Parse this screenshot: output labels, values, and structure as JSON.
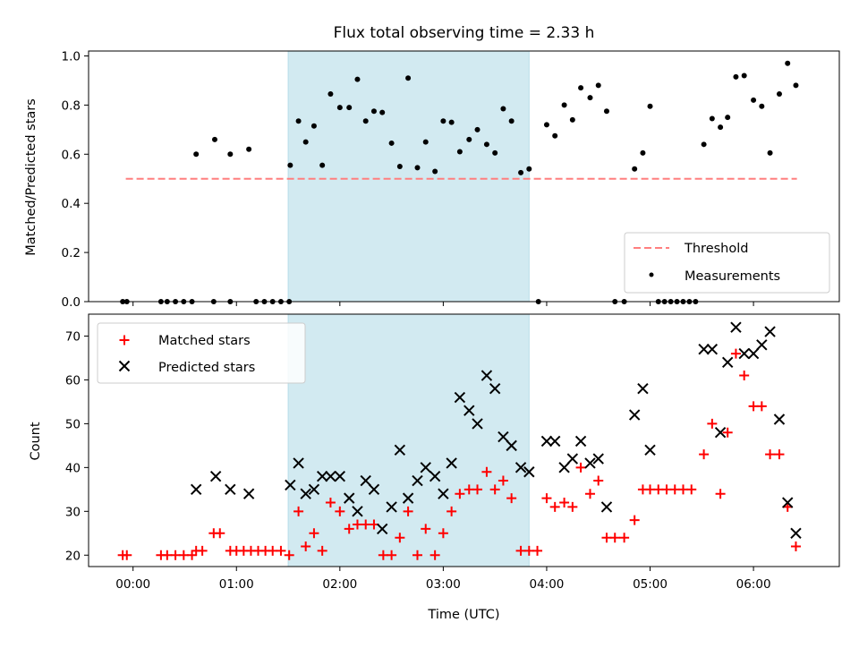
{
  "chart_data": {
    "title": "Flux total observing time = 2.33 h",
    "x_axis": {
      "label": "Time (UTC)",
      "unit": "hours",
      "range": [
        -0.43,
        6.83
      ],
      "ticks": [
        0,
        1,
        2,
        3,
        4,
        5,
        6
      ],
      "tick_labels": [
        "00:00",
        "01:00",
        "02:00",
        "03:00",
        "04:00",
        "05:00",
        "06:00"
      ]
    },
    "highlight_span": {
      "x_start": 1.5,
      "x_end": 3.83,
      "color": "#add8e6"
    },
    "top_panel": {
      "type": "scatter",
      "ylabel": "Matched/Predicted stars",
      "ylim": [
        0,
        1.02
      ],
      "yticks": [
        0.0,
        0.2,
        0.4,
        0.6,
        0.8,
        1.0
      ],
      "ytick_labels": [
        "0.0",
        "0.2",
        "0.4",
        "0.6",
        "0.8",
        "1.0"
      ],
      "legend_position": "lower right",
      "threshold": {
        "name": "Threshold",
        "value": 0.5,
        "x_start": -0.07,
        "x_end": 6.42,
        "color": "#ff7f7f",
        "style": "dashed"
      },
      "measurements": {
        "name": "Measurements",
        "color": "#000000",
        "points": [
          [
            -0.1,
            0
          ],
          [
            -0.06,
            0
          ],
          [
            0.27,
            0
          ],
          [
            0.33,
            0
          ],
          [
            0.41,
            0
          ],
          [
            0.49,
            0
          ],
          [
            0.57,
            0
          ],
          [
            0.78,
            0
          ],
          [
            0.94,
            0
          ],
          [
            1.19,
            0
          ],
          [
            1.27,
            0
          ],
          [
            1.35,
            0
          ],
          [
            1.43,
            0
          ],
          [
            1.51,
            0
          ],
          [
            0.61,
            0.6
          ],
          [
            0.79,
            0.66
          ],
          [
            0.94,
            0.6
          ],
          [
            1.12,
            0.62
          ],
          [
            1.52,
            0.555
          ],
          [
            1.6,
            0.735
          ],
          [
            1.67,
            0.65
          ],
          [
            1.75,
            0.715
          ],
          [
            1.83,
            0.555
          ],
          [
            1.91,
            0.845
          ],
          [
            2.0,
            0.79
          ],
          [
            2.09,
            0.79
          ],
          [
            2.17,
            0.905
          ],
          [
            2.25,
            0.735
          ],
          [
            2.33,
            0.775
          ],
          [
            2.41,
            0.77
          ],
          [
            2.5,
            0.645
          ],
          [
            2.58,
            0.55
          ],
          [
            2.66,
            0.91
          ],
          [
            2.75,
            0.545
          ],
          [
            2.83,
            0.65
          ],
          [
            2.92,
            0.53
          ],
          [
            3.0,
            0.735
          ],
          [
            3.08,
            0.73
          ],
          [
            3.16,
            0.61
          ],
          [
            3.25,
            0.66
          ],
          [
            3.33,
            0.7
          ],
          [
            3.42,
            0.64
          ],
          [
            3.5,
            0.605
          ],
          [
            3.58,
            0.785
          ],
          [
            3.66,
            0.735
          ],
          [
            3.75,
            0.525
          ],
          [
            3.83,
            0.54
          ],
          [
            3.92,
            0
          ],
          [
            4.0,
            0.72
          ],
          [
            4.08,
            0.675
          ],
          [
            4.17,
            0.8
          ],
          [
            4.25,
            0.74
          ],
          [
            4.33,
            0.87
          ],
          [
            4.42,
            0.83
          ],
          [
            4.5,
            0.88
          ],
          [
            4.58,
            0.775
          ],
          [
            4.66,
            0
          ],
          [
            4.75,
            0
          ],
          [
            4.85,
            0.54
          ],
          [
            4.93,
            0.605
          ],
          [
            5.0,
            0.795
          ],
          [
            5.08,
            0
          ],
          [
            5.14,
            0
          ],
          [
            5.2,
            0
          ],
          [
            5.26,
            0
          ],
          [
            5.32,
            0
          ],
          [
            5.38,
            0
          ],
          [
            5.44,
            0
          ],
          [
            5.52,
            0.64
          ],
          [
            5.6,
            0.745
          ],
          [
            5.68,
            0.71
          ],
          [
            5.75,
            0.75
          ],
          [
            5.83,
            0.915
          ],
          [
            5.91,
            0.92
          ],
          [
            6.0,
            0.82
          ],
          [
            6.08,
            0.795
          ],
          [
            6.16,
            0.605
          ],
          [
            6.25,
            0.845
          ],
          [
            6.33,
            0.97
          ],
          [
            6.41,
            0.88
          ]
        ]
      }
    },
    "bottom_panel": {
      "type": "scatter",
      "ylabel": "Count",
      "ylim": [
        17.4,
        75
      ],
      "yticks": [
        20,
        30,
        40,
        50,
        60,
        70
      ],
      "ytick_labels": [
        "20",
        "30",
        "40",
        "50",
        "60",
        "70"
      ],
      "legend_position": "upper left",
      "series": [
        {
          "name": "Matched stars",
          "marker": "+",
          "color": "#ff0000",
          "points": [
            [
              -0.1,
              20
            ],
            [
              -0.06,
              20
            ],
            [
              0.27,
              20
            ],
            [
              0.33,
              20
            ],
            [
              0.41,
              20
            ],
            [
              0.49,
              20
            ],
            [
              0.57,
              20
            ],
            [
              0.61,
              21
            ],
            [
              0.67,
              21
            ],
            [
              0.78,
              25
            ],
            [
              0.84,
              25
            ],
            [
              0.94,
              21
            ],
            [
              1.0,
              21
            ],
            [
              1.07,
              21
            ],
            [
              1.14,
              21
            ],
            [
              1.21,
              21
            ],
            [
              1.28,
              21
            ],
            [
              1.35,
              21
            ],
            [
              1.43,
              21
            ],
            [
              1.51,
              20
            ],
            [
              1.6,
              30
            ],
            [
              1.67,
              22
            ],
            [
              1.75,
              25
            ],
            [
              1.83,
              21
            ],
            [
              1.91,
              32
            ],
            [
              2.0,
              30
            ],
            [
              2.09,
              26
            ],
            [
              2.17,
              27
            ],
            [
              2.25,
              27
            ],
            [
              2.33,
              27
            ],
            [
              2.42,
              20
            ],
            [
              2.5,
              20
            ],
            [
              2.58,
              24
            ],
            [
              2.66,
              30
            ],
            [
              2.75,
              20
            ],
            [
              2.83,
              26
            ],
            [
              2.92,
              20
            ],
            [
              3.0,
              25
            ],
            [
              3.08,
              30
            ],
            [
              3.16,
              34
            ],
            [
              3.25,
              35
            ],
            [
              3.33,
              35
            ],
            [
              3.42,
              39
            ],
            [
              3.5,
              35
            ],
            [
              3.58,
              37
            ],
            [
              3.66,
              33
            ],
            [
              3.75,
              21
            ],
            [
              3.83,
              21
            ],
            [
              3.91,
              21
            ],
            [
              4.0,
              33
            ],
            [
              4.08,
              31
            ],
            [
              4.17,
              32
            ],
            [
              4.25,
              31
            ],
            [
              4.33,
              40
            ],
            [
              4.42,
              34
            ],
            [
              4.5,
              37
            ],
            [
              4.58,
              24
            ],
            [
              4.66,
              24
            ],
            [
              4.75,
              24
            ],
            [
              4.85,
              28
            ],
            [
              4.93,
              35
            ],
            [
              5.0,
              35
            ],
            [
              5.08,
              35
            ],
            [
              5.16,
              35
            ],
            [
              5.24,
              35
            ],
            [
              5.32,
              35
            ],
            [
              5.4,
              35
            ],
            [
              5.52,
              43
            ],
            [
              5.6,
              50
            ],
            [
              5.68,
              34
            ],
            [
              5.75,
              48
            ],
            [
              5.83,
              66
            ],
            [
              5.91,
              61
            ],
            [
              6.0,
              54
            ],
            [
              6.08,
              54
            ],
            [
              6.16,
              43
            ],
            [
              6.25,
              43
            ],
            [
              6.33,
              31
            ],
            [
              6.41,
              22
            ]
          ]
        },
        {
          "name": "Predicted stars",
          "marker": "x",
          "color": "#000000",
          "points": [
            [
              0.61,
              35
            ],
            [
              0.8,
              38
            ],
            [
              0.94,
              35
            ],
            [
              1.12,
              34
            ],
            [
              1.52,
              36
            ],
            [
              1.6,
              41
            ],
            [
              1.67,
              34
            ],
            [
              1.75,
              35
            ],
            [
              1.83,
              38
            ],
            [
              1.91,
              38
            ],
            [
              2.0,
              38
            ],
            [
              2.09,
              33
            ],
            [
              2.17,
              30
            ],
            [
              2.25,
              37
            ],
            [
              2.33,
              35
            ],
            [
              2.41,
              26
            ],
            [
              2.5,
              31
            ],
            [
              2.58,
              44
            ],
            [
              2.66,
              33
            ],
            [
              2.75,
              37
            ],
            [
              2.83,
              40
            ],
            [
              2.92,
              38
            ],
            [
              3.0,
              34
            ],
            [
              3.08,
              41
            ],
            [
              3.16,
              56
            ],
            [
              3.25,
              53
            ],
            [
              3.33,
              50
            ],
            [
              3.42,
              61
            ],
            [
              3.5,
              58
            ],
            [
              3.58,
              47
            ],
            [
              3.66,
              45
            ],
            [
              3.75,
              40
            ],
            [
              3.83,
              39
            ],
            [
              4.0,
              46
            ],
            [
              4.08,
              46
            ],
            [
              4.17,
              40
            ],
            [
              4.25,
              42
            ],
            [
              4.33,
              46
            ],
            [
              4.42,
              41
            ],
            [
              4.5,
              42
            ],
            [
              4.58,
              31
            ],
            [
              4.85,
              52
            ],
            [
              4.93,
              58
            ],
            [
              5.0,
              44
            ],
            [
              5.52,
              67
            ],
            [
              5.6,
              67
            ],
            [
              5.68,
              48
            ],
            [
              5.75,
              64
            ],
            [
              5.83,
              72
            ],
            [
              5.91,
              66
            ],
            [
              6.0,
              66
            ],
            [
              6.08,
              68
            ],
            [
              6.16,
              71
            ],
            [
              6.25,
              51
            ],
            [
              6.33,
              32
            ],
            [
              6.41,
              25
            ]
          ]
        }
      ]
    }
  }
}
